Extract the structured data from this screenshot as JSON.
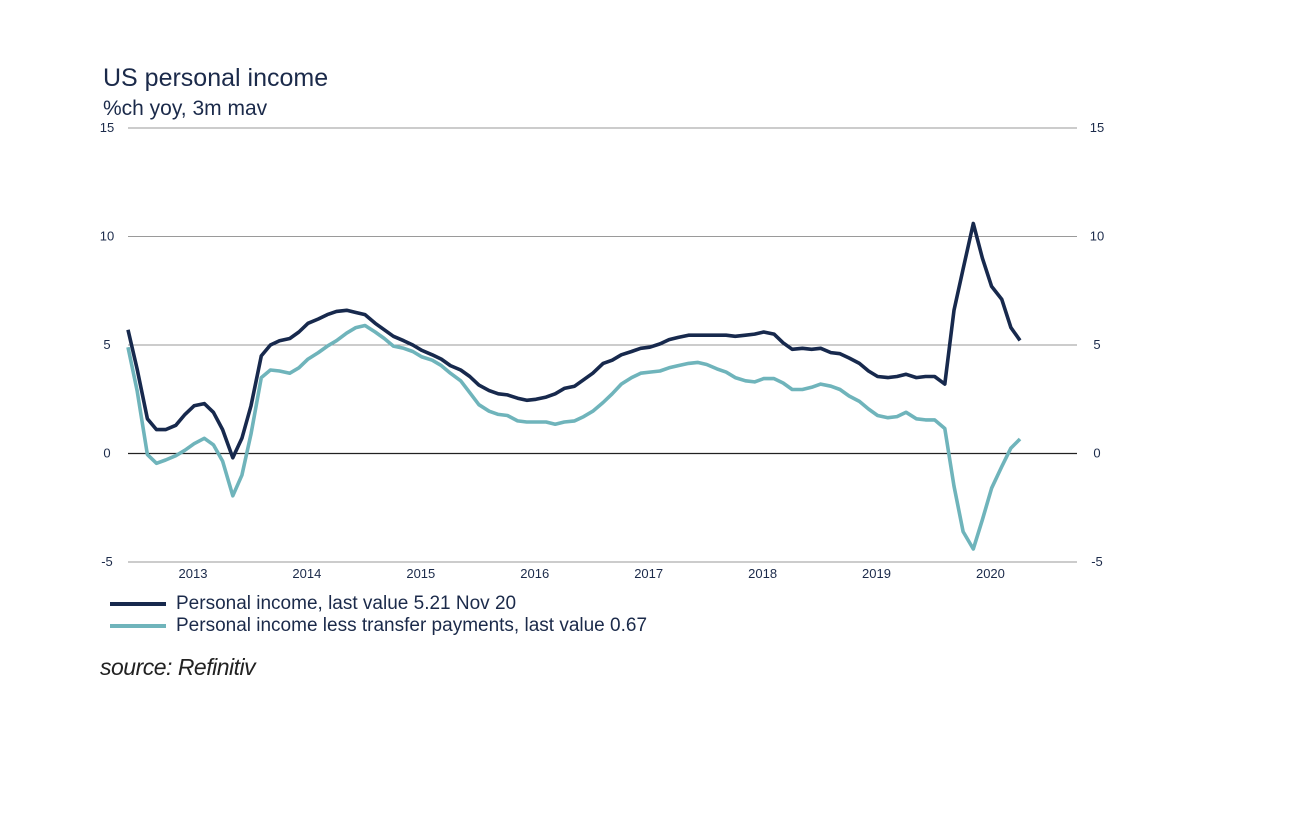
{
  "chart_data": {
    "type": "line",
    "title": "US personal income",
    "subtitle": "%ch yoy, 3m mav",
    "ylim": [
      -5,
      15
    ],
    "yticks": [
      15,
      10,
      5,
      0,
      -5
    ],
    "ytick_labels": [
      "15",
      "10",
      "5",
      "0",
      "-5"
    ],
    "x_start": 2012.5,
    "x_end": 2020.83,
    "xtick_labels": [
      "2013",
      "2014",
      "2015",
      "2016",
      "2017",
      "2018",
      "2019",
      "2020"
    ],
    "xtick_positions": [
      2013,
      2014,
      2015,
      2016,
      2017,
      2018,
      2019,
      2020
    ],
    "grid": "horizontal",
    "legend_position": "bottom-left",
    "series": [
      {
        "name": "Personal income, last value 5.21 Nov 20",
        "color": "#17294d",
        "points": [
          [
            2012.5,
            5.7
          ],
          [
            2012.58,
            3.9
          ],
          [
            2012.67,
            1.6
          ],
          [
            2012.75,
            1.1
          ],
          [
            2012.83,
            1.1
          ],
          [
            2012.92,
            1.3
          ],
          [
            2013.0,
            1.8
          ],
          [
            2013.08,
            2.2
          ],
          [
            2013.17,
            2.3
          ],
          [
            2013.25,
            1.9
          ],
          [
            2013.33,
            1.1
          ],
          [
            2013.42,
            -0.2
          ],
          [
            2013.5,
            0.7
          ],
          [
            2013.58,
            2.2
          ],
          [
            2013.67,
            4.5
          ],
          [
            2013.75,
            5.0
          ],
          [
            2013.83,
            5.2
          ],
          [
            2013.92,
            5.3
          ],
          [
            2014.0,
            5.6
          ],
          [
            2014.08,
            6.0
          ],
          [
            2014.17,
            6.2
          ],
          [
            2014.25,
            6.4
          ],
          [
            2014.33,
            6.55
          ],
          [
            2014.42,
            6.6
          ],
          [
            2014.5,
            6.5
          ],
          [
            2014.58,
            6.4
          ],
          [
            2014.67,
            6.0
          ],
          [
            2014.75,
            5.7
          ],
          [
            2014.83,
            5.4
          ],
          [
            2014.92,
            5.2
          ],
          [
            2015.0,
            5.0
          ],
          [
            2015.08,
            4.75
          ],
          [
            2015.17,
            4.55
          ],
          [
            2015.25,
            4.35
          ],
          [
            2015.33,
            4.05
          ],
          [
            2015.42,
            3.85
          ],
          [
            2015.5,
            3.55
          ],
          [
            2015.58,
            3.15
          ],
          [
            2015.67,
            2.9
          ],
          [
            2015.75,
            2.75
          ],
          [
            2015.83,
            2.7
          ],
          [
            2015.92,
            2.55
          ],
          [
            2016.0,
            2.45
          ],
          [
            2016.08,
            2.5
          ],
          [
            2016.17,
            2.6
          ],
          [
            2016.25,
            2.75
          ],
          [
            2016.33,
            3.0
          ],
          [
            2016.42,
            3.1
          ],
          [
            2016.5,
            3.4
          ],
          [
            2016.58,
            3.7
          ],
          [
            2016.67,
            4.15
          ],
          [
            2016.75,
            4.3
          ],
          [
            2016.83,
            4.55
          ],
          [
            2016.92,
            4.7
          ],
          [
            2017.0,
            4.85
          ],
          [
            2017.08,
            4.9
          ],
          [
            2017.17,
            5.05
          ],
          [
            2017.25,
            5.25
          ],
          [
            2017.33,
            5.35
          ],
          [
            2017.42,
            5.45
          ],
          [
            2017.5,
            5.45
          ],
          [
            2017.58,
            5.45
          ],
          [
            2017.67,
            5.45
          ],
          [
            2017.75,
            5.45
          ],
          [
            2017.83,
            5.4
          ],
          [
            2017.92,
            5.45
          ],
          [
            2018.0,
            5.5
          ],
          [
            2018.08,
            5.6
          ],
          [
            2018.17,
            5.5
          ],
          [
            2018.25,
            5.1
          ],
          [
            2018.33,
            4.8
          ],
          [
            2018.42,
            4.85
          ],
          [
            2018.5,
            4.8
          ],
          [
            2018.58,
            4.85
          ],
          [
            2018.67,
            4.65
          ],
          [
            2018.75,
            4.6
          ],
          [
            2018.83,
            4.4
          ],
          [
            2018.92,
            4.15
          ],
          [
            2019.0,
            3.8
          ],
          [
            2019.08,
            3.55
          ],
          [
            2019.17,
            3.5
          ],
          [
            2019.25,
            3.55
          ],
          [
            2019.33,
            3.65
          ],
          [
            2019.42,
            3.5
          ],
          [
            2019.5,
            3.55
          ],
          [
            2019.58,
            3.55
          ],
          [
            2019.67,
            3.2
          ],
          [
            2019.75,
            6.6
          ],
          [
            2019.83,
            8.5
          ],
          [
            2019.92,
            10.6
          ],
          [
            2020.0,
            9.0
          ],
          [
            2020.08,
            7.7
          ],
          [
            2020.17,
            7.1
          ],
          [
            2020.25,
            5.8
          ],
          [
            2020.33,
            5.21
          ]
        ]
      },
      {
        "name": "Personal income less transfer payments, last value 0.67",
        "color": "#6fb4bb",
        "points": [
          [
            2012.5,
            4.9
          ],
          [
            2012.58,
            2.9
          ],
          [
            2012.67,
            -0.05
          ],
          [
            2012.75,
            -0.45
          ],
          [
            2012.83,
            -0.3
          ],
          [
            2012.92,
            -0.1
          ],
          [
            2013.0,
            0.15
          ],
          [
            2013.08,
            0.45
          ],
          [
            2013.17,
            0.7
          ],
          [
            2013.25,
            0.4
          ],
          [
            2013.33,
            -0.35
          ],
          [
            2013.42,
            -1.95
          ],
          [
            2013.5,
            -1.0
          ],
          [
            2013.58,
            0.9
          ],
          [
            2013.67,
            3.5
          ],
          [
            2013.75,
            3.85
          ],
          [
            2013.83,
            3.8
          ],
          [
            2013.92,
            3.7
          ],
          [
            2014.0,
            3.95
          ],
          [
            2014.08,
            4.35
          ],
          [
            2014.17,
            4.65
          ],
          [
            2014.25,
            4.95
          ],
          [
            2014.33,
            5.2
          ],
          [
            2014.42,
            5.55
          ],
          [
            2014.5,
            5.8
          ],
          [
            2014.58,
            5.9
          ],
          [
            2014.67,
            5.6
          ],
          [
            2014.75,
            5.3
          ],
          [
            2014.83,
            4.95
          ],
          [
            2014.92,
            4.85
          ],
          [
            2015.0,
            4.7
          ],
          [
            2015.08,
            4.45
          ],
          [
            2015.17,
            4.3
          ],
          [
            2015.25,
            4.05
          ],
          [
            2015.33,
            3.7
          ],
          [
            2015.42,
            3.35
          ],
          [
            2015.5,
            2.8
          ],
          [
            2015.58,
            2.25
          ],
          [
            2015.67,
            1.95
          ],
          [
            2015.75,
            1.8
          ],
          [
            2015.83,
            1.75
          ],
          [
            2015.92,
            1.5
          ],
          [
            2016.0,
            1.45
          ],
          [
            2016.08,
            1.45
          ],
          [
            2016.17,
            1.45
          ],
          [
            2016.25,
            1.35
          ],
          [
            2016.33,
            1.45
          ],
          [
            2016.42,
            1.5
          ],
          [
            2016.5,
            1.7
          ],
          [
            2016.58,
            1.95
          ],
          [
            2016.67,
            2.35
          ],
          [
            2016.75,
            2.75
          ],
          [
            2016.83,
            3.2
          ],
          [
            2016.92,
            3.5
          ],
          [
            2017.0,
            3.7
          ],
          [
            2017.08,
            3.75
          ],
          [
            2017.17,
            3.8
          ],
          [
            2017.25,
            3.95
          ],
          [
            2017.33,
            4.05
          ],
          [
            2017.42,
            4.15
          ],
          [
            2017.5,
            4.2
          ],
          [
            2017.58,
            4.1
          ],
          [
            2017.67,
            3.9
          ],
          [
            2017.75,
            3.75
          ],
          [
            2017.83,
            3.5
          ],
          [
            2017.92,
            3.35
          ],
          [
            2018.0,
            3.3
          ],
          [
            2018.08,
            3.45
          ],
          [
            2018.17,
            3.45
          ],
          [
            2018.25,
            3.25
          ],
          [
            2018.33,
            2.95
          ],
          [
            2018.42,
            2.95
          ],
          [
            2018.5,
            3.05
          ],
          [
            2018.58,
            3.2
          ],
          [
            2018.67,
            3.1
          ],
          [
            2018.75,
            2.95
          ],
          [
            2018.83,
            2.65
          ],
          [
            2018.92,
            2.4
          ],
          [
            2019.0,
            2.05
          ],
          [
            2019.08,
            1.75
          ],
          [
            2019.17,
            1.65
          ],
          [
            2019.25,
            1.7
          ],
          [
            2019.33,
            1.9
          ],
          [
            2019.42,
            1.6
          ],
          [
            2019.5,
            1.55
          ],
          [
            2019.58,
            1.55
          ],
          [
            2019.67,
            1.15
          ],
          [
            2019.75,
            -1.5
          ],
          [
            2019.83,
            -3.6
          ],
          [
            2019.92,
            -4.4
          ],
          [
            2020.0,
            -3.05
          ],
          [
            2020.08,
            -1.6
          ],
          [
            2020.17,
            -0.6
          ],
          [
            2020.25,
            0.25
          ],
          [
            2020.33,
            0.67
          ]
        ]
      }
    ]
  },
  "legend": {
    "item1": "Personal income, last value 5.21 Nov 20",
    "item2": "Personal income less transfer payments, last value 0.67"
  },
  "source_text": "source: Refinitiv"
}
